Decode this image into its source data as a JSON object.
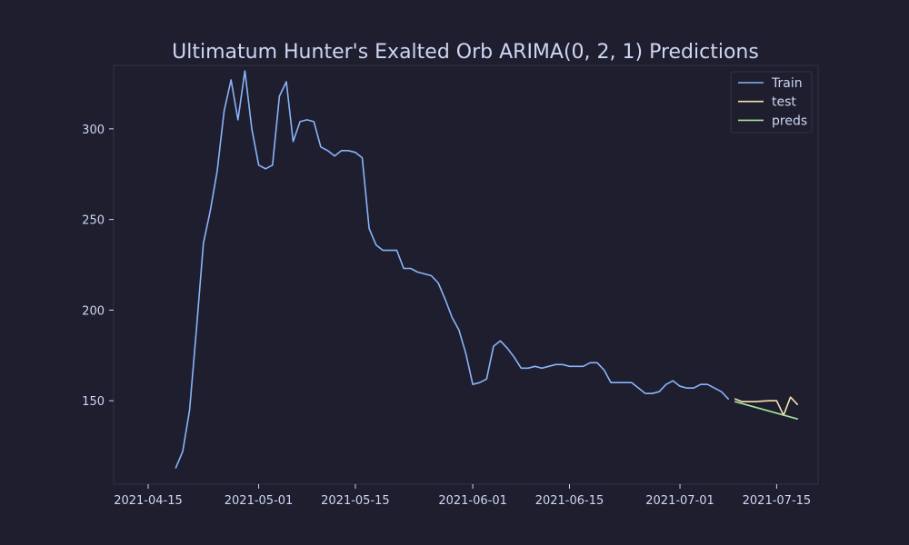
{
  "chart_data": {
    "type": "line",
    "title": "Ultimatum Hunter's Exalted Orb ARIMA(0, 2, 1) Predictions",
    "xlabel": "",
    "ylabel": "",
    "xlim": [
      "2021-04-10",
      "2021-07-21"
    ],
    "ylim": [
      104,
      335
    ],
    "x_ticks": [
      "2021-04-15",
      "2021-05-01",
      "2021-05-15",
      "2021-06-01",
      "2021-06-15",
      "2021-07-01",
      "2021-07-15"
    ],
    "y_ticks": [
      150,
      200,
      250,
      300
    ],
    "grid": false,
    "legend": {
      "position": "top-right",
      "entries": [
        "Train",
        "test",
        "preds"
      ]
    },
    "colors": {
      "background": "#1e1e2e",
      "axes_border": "#313244",
      "text": "#cdd6f4",
      "Train": "#89b4fa",
      "test": "#f9e2af",
      "preds": "#a6e3a1"
    },
    "series": [
      {
        "name": "Train",
        "x": [
          "2021-04-19",
          "2021-04-20",
          "2021-04-21",
          "2021-04-22",
          "2021-04-23",
          "2021-04-24",
          "2021-04-25",
          "2021-04-26",
          "2021-04-27",
          "2021-04-28",
          "2021-04-29",
          "2021-04-30",
          "2021-05-01",
          "2021-05-02",
          "2021-05-03",
          "2021-05-04",
          "2021-05-05",
          "2021-05-06",
          "2021-05-07",
          "2021-05-08",
          "2021-05-09",
          "2021-05-10",
          "2021-05-11",
          "2021-05-12",
          "2021-05-13",
          "2021-05-14",
          "2021-05-15",
          "2021-05-16",
          "2021-05-17",
          "2021-05-18",
          "2021-05-19",
          "2021-05-20",
          "2021-05-21",
          "2021-05-22",
          "2021-05-23",
          "2021-05-24",
          "2021-05-25",
          "2021-05-26",
          "2021-05-27",
          "2021-05-28",
          "2021-05-29",
          "2021-05-30",
          "2021-05-31",
          "2021-06-01",
          "2021-06-02",
          "2021-06-03",
          "2021-06-04",
          "2021-06-05",
          "2021-06-06",
          "2021-06-07",
          "2021-06-08",
          "2021-06-09",
          "2021-06-10",
          "2021-06-11",
          "2021-06-12",
          "2021-06-13",
          "2021-06-14",
          "2021-06-15",
          "2021-06-16",
          "2021-06-17",
          "2021-06-18",
          "2021-06-19",
          "2021-06-20",
          "2021-06-21",
          "2021-06-22",
          "2021-06-23",
          "2021-06-24",
          "2021-06-25",
          "2021-06-26",
          "2021-06-27",
          "2021-06-28",
          "2021-06-29",
          "2021-06-30",
          "2021-07-01",
          "2021-07-02",
          "2021-07-03",
          "2021-07-04",
          "2021-07-05",
          "2021-07-06",
          "2021-07-07",
          "2021-07-08"
        ],
        "values": [
          113,
          122,
          145,
          190,
          237,
          255,
          277,
          310,
          327,
          305,
          332,
          300,
          280,
          278,
          280,
          318,
          326,
          293,
          304,
          305,
          304,
          290,
          288,
          285,
          288,
          288,
          287,
          284,
          245,
          236,
          233,
          233,
          233,
          223,
          223,
          221,
          220,
          219,
          215,
          206,
          196,
          189,
          176,
          159,
          160,
          162,
          180,
          183,
          179,
          174,
          168,
          168,
          169,
          168,
          169,
          170,
          170,
          169,
          169,
          169,
          171,
          171,
          167,
          160,
          160,
          160,
          160,
          157,
          154,
          154,
          155,
          159,
          161,
          158,
          157,
          157,
          159,
          159,
          157,
          155,
          151
        ]
      },
      {
        "name": "test",
        "x": [
          "2021-07-09",
          "2021-07-10",
          "2021-07-11",
          "2021-07-12",
          "2021-07-13",
          "2021-07-14",
          "2021-07-15",
          "2021-07-16",
          "2021-07-17",
          "2021-07-18"
        ],
        "values": [
          151,
          149.5,
          149.5,
          149.5,
          149.8,
          150,
          150,
          142,
          152,
          148
        ]
      },
      {
        "name": "preds",
        "x": [
          "2021-07-09",
          "2021-07-18"
        ],
        "values": [
          149.5,
          140
        ]
      }
    ]
  }
}
